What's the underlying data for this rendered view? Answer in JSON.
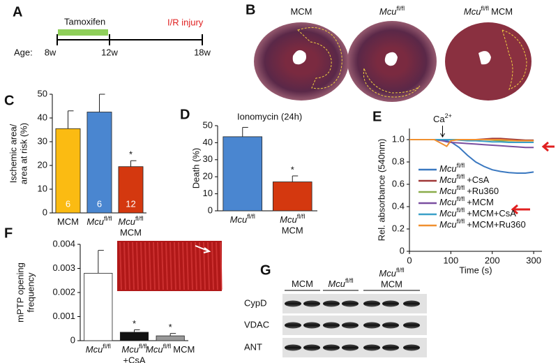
{
  "panel_labels": [
    "A",
    "B",
    "C",
    "D",
    "E",
    "F",
    "G"
  ],
  "timeline": {
    "treatment": "Tamoxifen",
    "event": "I/R injury",
    "age_label": "Age:",
    "ages": [
      "8w",
      "12w",
      "18w"
    ]
  },
  "heart_images": [
    {
      "text": "MCM"
    },
    {
      "text": "Mcu",
      "sup": "fl/fl"
    },
    {
      "text": "Mcu",
      "sup": "fl/fl",
      "after": "MCM"
    }
  ],
  "chart_data": [
    {
      "type": "bar",
      "ylabel": [
        "Ischemic area/",
        "area at risk (%)"
      ],
      "categories": [
        {
          "text": "MCM"
        },
        {
          "text": "Mcu",
          "sup": "fl/fl"
        },
        {
          "text": "Mcu",
          "sup": "fl/fl",
          "line2": "MCM"
        }
      ],
      "values": [
        35.5,
        42.5,
        19.5
      ],
      "errors": [
        7.5,
        7.5,
        2.5
      ],
      "colors": [
        "#fbbb12",
        "#4a86d0",
        "#d4380f"
      ],
      "n_labels": [
        "6",
        "6",
        "12"
      ],
      "significance": [
        null,
        null,
        "*"
      ],
      "ylim": [
        0,
        50
      ],
      "yticks": [
        0,
        10,
        20,
        30,
        40,
        50
      ]
    },
    {
      "type": "bar",
      "title": "Ionomycin (24h)",
      "ylabel": [
        "Death (%)"
      ],
      "categories": [
        {
          "text": "Mcu",
          "sup": "fl/fl"
        },
        {
          "text": "Mcu",
          "sup": "fl/fl",
          "line2": "MCM"
        }
      ],
      "values": [
        43.5,
        17
      ],
      "errors": [
        5.5,
        3.5
      ],
      "colors": [
        "#4a86d0",
        "#d4380f"
      ],
      "significance": [
        null,
        "*"
      ],
      "ylim": [
        0,
        50
      ],
      "yticks": [
        0,
        10,
        20,
        30,
        40,
        50
      ]
    },
    {
      "type": "line",
      "xlabel": "Time (s)",
      "ylabel": [
        "Rel. absorbance (540nm)"
      ],
      "annotation": {
        "text": "Ca",
        "sup": "2+",
        "x": 80
      },
      "x": [
        0,
        20,
        40,
        60,
        80,
        90,
        100,
        120,
        140,
        160,
        180,
        200,
        220,
        240,
        260,
        280,
        300
      ],
      "series": [
        {
          "name": {
            "text": "Mcu",
            "sup": "fl/fl"
          },
          "color": "#3a78c0",
          "values": [
            1,
            1,
            1,
            1,
            0.995,
            0.99,
            0.98,
            0.93,
            0.86,
            0.8,
            0.76,
            0.73,
            0.715,
            0.705,
            0.7,
            0.7,
            0.71
          ]
        },
        {
          "name": {
            "text": "Mcu",
            "sup": "fl/fl",
            "after": "+CsA"
          },
          "color": "#a03838",
          "values": [
            1,
            1,
            1,
            1,
            1,
            1,
            1,
            1,
            1,
            1,
            1.005,
            1.01,
            1.01,
            1.005,
            1,
            0.995,
            0.995
          ]
        },
        {
          "name": {
            "text": "Mcu",
            "sup": "fl/fl",
            "after": "+Ru360"
          },
          "color": "#8aac4a",
          "values": [
            1,
            1,
            1,
            1,
            1,
            1,
            1,
            1,
            1,
            1,
            1,
            0.995,
            0.99,
            0.99,
            0.99,
            0.99,
            0.99
          ]
        },
        {
          "name": {
            "text": "Mcu",
            "sup": "fl/fl",
            "after": "+MCM"
          },
          "color": "#7a4fa0",
          "values": [
            1,
            1,
            1,
            1,
            0.99,
            0.98,
            0.975,
            0.97,
            0.965,
            0.96,
            0.955,
            0.95,
            0.945,
            0.94,
            0.935,
            0.93,
            0.93
          ]
        },
        {
          "name": {
            "text": "Mcu",
            "sup": "fl/fl",
            "after": "+MCM+CsA"
          },
          "color": "#3aa0c8",
          "values": [
            1,
            1,
            1,
            1,
            1,
            1,
            1,
            0.995,
            0.99,
            0.99,
            0.985,
            0.98,
            0.98,
            0.975,
            0.975,
            0.975,
            0.975
          ]
        },
        {
          "name": {
            "text": "Mcu",
            "sup": "fl/fl",
            "after": "+MCM+Ru360"
          },
          "color": "#f09030",
          "values": [
            1,
            1,
            1,
            1,
            0.96,
            0.94,
            0.99,
            1,
            1,
            1,
            1,
            1,
            1,
            0.995,
            0.99,
            0.99,
            0.99
          ]
        }
      ],
      "xlim": [
        0,
        320
      ],
      "xticks": [
        0,
        100,
        200,
        300
      ],
      "ylim": [
        0,
        1.1
      ],
      "yticks": [
        0,
        0.2,
        0.4,
        0.6,
        0.8,
        {
          "value": 1,
          "label": "1.0"
        }
      ]
    },
    {
      "type": "bar",
      "ylabel": [
        "mPTP opening",
        "frequency"
      ],
      "categories": [
        {
          "text": "Mcu",
          "sup": "fl/fl"
        },
        {
          "text": "Mcu",
          "sup": "fl/fl",
          "line2": "+CsA"
        },
        {
          "text": "Mcu",
          "sup": "fl/fl",
          "after": "MCM"
        }
      ],
      "values": [
        0.0028,
        0.00035,
        0.0002
      ],
      "errors": [
        0.00095,
        0.0001,
        0.0001
      ],
      "colors": [
        "#ffffff",
        "#111111",
        "#999999"
      ],
      "significance": [
        null,
        "*",
        "*"
      ],
      "ylim": [
        0,
        0.004
      ],
      "yticks": [
        0,
        0.001,
        0.002,
        0.003,
        0.004
      ]
    }
  ],
  "western_blot": {
    "groups": [
      {
        "text": "MCM"
      },
      {
        "text": "Mcu",
        "sup": "fl/fl"
      },
      {
        "text": "Mcu",
        "sup": "fl/fl",
        "line2": "MCM"
      }
    ],
    "rows": [
      "CypD",
      "VDAC",
      "ANT"
    ]
  }
}
